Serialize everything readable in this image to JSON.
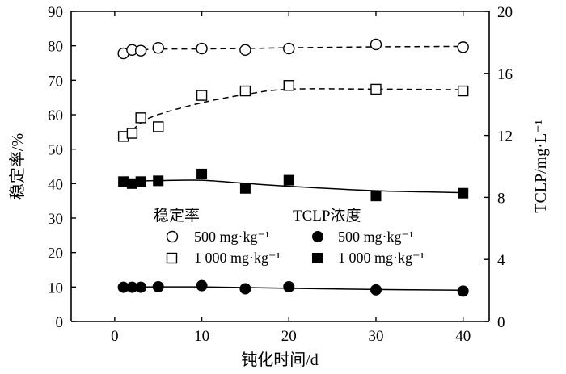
{
  "chart_data": {
    "type": "scatter",
    "xlabel": "钝化时间/d",
    "ylabel_left": "稳定率/%",
    "ylabel_right": "TCLP/mg·L⁻¹",
    "x_ticks": [
      "0",
      "10",
      "20",
      "30",
      "40"
    ],
    "y_left_ticks": [
      "0",
      "10",
      "20",
      "30",
      "40",
      "50",
      "60",
      "70",
      "80",
      "90"
    ],
    "y_right_ticks": [
      "0",
      "4",
      "8",
      "12",
      "16",
      "20"
    ],
    "xlim": [
      -5,
      43
    ],
    "ylim_left": [
      0,
      90
    ],
    "ylim_right": [
      0,
      20
    ],
    "legend": {
      "head_stability": "稳定率",
      "head_tclp": "TCLP浓度",
      "label_500": "500 mg·kg⁻¹",
      "label_1000": "1 000 mg·kg⁻¹"
    },
    "series": [
      {
        "name": "稳定率 500 mg·kg⁻¹",
        "axis": "left",
        "marker": "open-circle",
        "fit": "dashed",
        "x": [
          1,
          2,
          3,
          5,
          10,
          15,
          20,
          30,
          40
        ],
        "y": [
          77.8,
          78.8,
          78.6,
          79.4,
          79.2,
          78.8,
          79.2,
          80.4,
          79.6
        ]
      },
      {
        "name": "稳定率 1 000 mg·kg⁻¹",
        "axis": "left",
        "marker": "open-square",
        "fit": "dashed",
        "x": [
          1,
          2,
          3,
          5,
          10,
          15,
          20,
          30,
          40
        ],
        "y": [
          53.7,
          54.6,
          59.1,
          56.5,
          65.6,
          66.9,
          68.5,
          67.4,
          66.9
        ]
      },
      {
        "name": "TCLP浓度 500 mg·kg⁻¹",
        "axis": "right",
        "marker": "filled-circle",
        "fit": "solid",
        "x": [
          1,
          2,
          3,
          5,
          10,
          15,
          20,
          30,
          40
        ],
        "y": [
          2.21,
          2.21,
          2.21,
          2.24,
          2.31,
          2.11,
          2.24,
          2.04,
          1.96
        ]
      },
      {
        "name": "TCLP浓度 1 000 mg·kg⁻¹",
        "axis": "right",
        "marker": "filled-square",
        "fit": "solid",
        "x": [
          1,
          2,
          3,
          5,
          10,
          15,
          20,
          30,
          40
        ],
        "y": [
          9.02,
          8.89,
          9.02,
          9.07,
          9.51,
          8.58,
          9.11,
          8.09,
          8.27
        ]
      }
    ]
  }
}
